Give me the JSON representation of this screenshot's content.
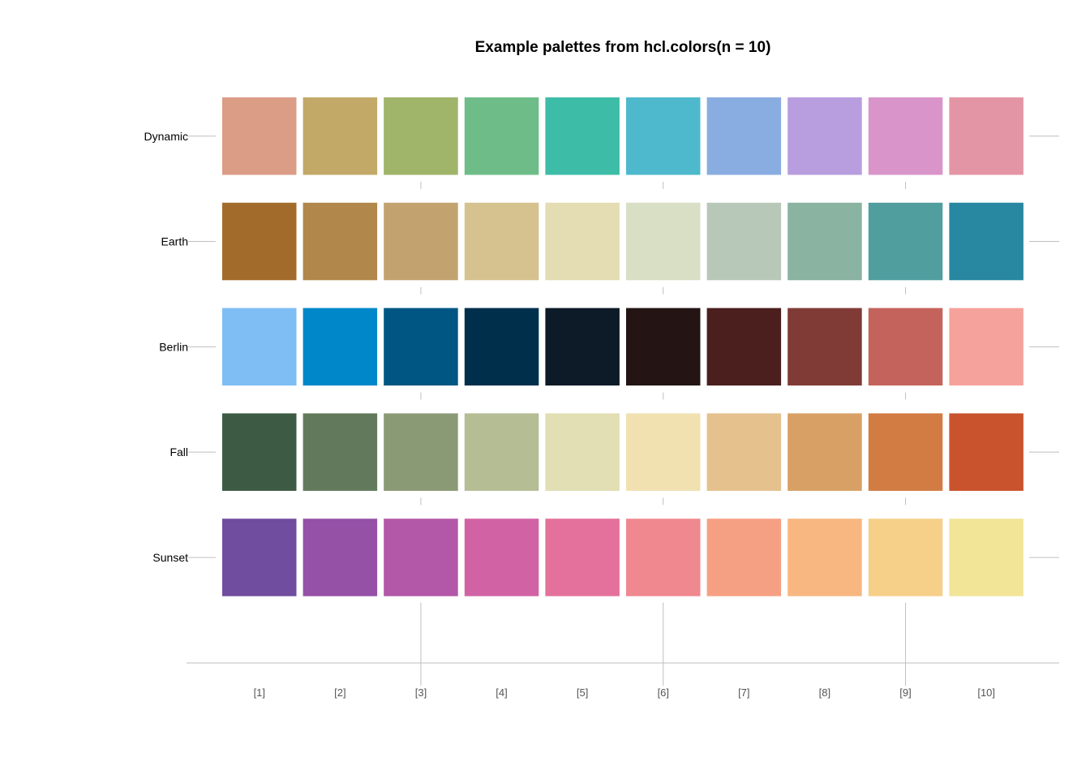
{
  "chart_data": {
    "type": "heatmap",
    "title": "Example palettes from hcl.colors(n = 10)",
    "xlabel": "",
    "ylabel": "",
    "categories": [
      "[1]",
      "[2]",
      "[3]",
      "[4]",
      "[5]",
      "[6]",
      "[7]",
      "[8]",
      "[9]",
      "[10]"
    ],
    "highlighted_ticks": [
      "[3]",
      "[6]",
      "[9]"
    ],
    "grid": false,
    "legend": "none",
    "palettes": [
      {
        "name": "Dynamic",
        "colors": [
          "#DB9D85",
          "#C2A968",
          "#A0B46A",
          "#6EBD88",
          "#3DBDA7",
          "#4EB9CC",
          "#89ADE0",
          "#B89DDF",
          "#D995CA",
          "#E495A5"
        ]
      },
      {
        "name": "Earth",
        "colors": [
          "#A36B2B",
          "#B2874C",
          "#C2A36F",
          "#D5C28F",
          "#E4DCB2",
          "#D9DFC4",
          "#B7C8B8",
          "#8AB3A1",
          "#519E9F",
          "#2887A1"
        ]
      },
      {
        "name": "Berlin",
        "colors": [
          "#7FBEF5",
          "#0087C9",
          "#005683",
          "#002F4C",
          "#0D1A27",
          "#241414",
          "#4A1F1D",
          "#803B37",
          "#C4635B",
          "#F6A29C"
        ]
      },
      {
        "name": "Fall",
        "colors": [
          "#3D5B44",
          "#627A5B",
          "#8A9A75",
          "#B4BD94",
          "#E1DFB3",
          "#F1E1B1",
          "#E4C18D",
          "#D8A065",
          "#D27C43",
          "#C9532C"
        ]
      },
      {
        "name": "Sunset",
        "colors": [
          "#704D9E",
          "#9451A6",
          "#B357A8",
          "#D163A5",
          "#E3719B",
          "#F0888F",
          "#F6A083",
          "#F8B781",
          "#F6D089",
          "#F2E598"
        ]
      }
    ]
  }
}
